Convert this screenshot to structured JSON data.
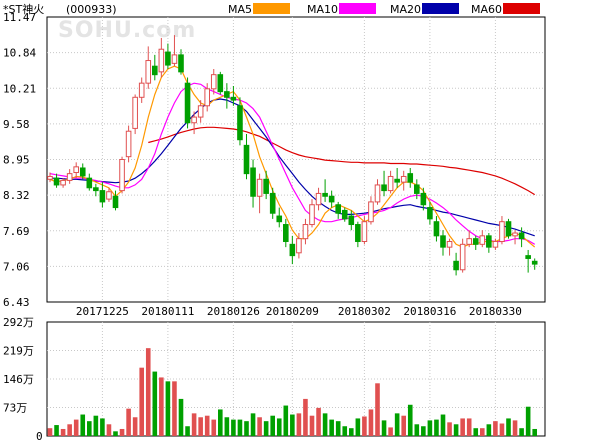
{
  "header": {
    "stock_name": "*ST神火",
    "stock_code": "(000933)"
  },
  "watermark": "SOHU.com",
  "legend": [
    {
      "label": "MA5",
      "color": "#ff9900"
    },
    {
      "label": "MA10",
      "color": "#ff00ff"
    },
    {
      "label": "MA20",
      "color": "#0000aa"
    },
    {
      "label": "MA60",
      "color": "#dd0000"
    }
  ],
  "colors": {
    "up": "#e05050",
    "down": "#00a000",
    "grid": "#c8c8c8",
    "axis": "#000000"
  },
  "chart_data": [
    {
      "type": "candlestick",
      "ylim": [
        6.43,
        11.47
      ],
      "y_ticks": [
        "11.47",
        "10.84",
        "10.21",
        "9.58",
        "8.95",
        "8.32",
        "7.69",
        "7.06",
        "6.43"
      ],
      "x_labels": [
        "20171225",
        "20180111",
        "20180126",
        "20180209",
        "20180302",
        "20180316",
        "20180330"
      ],
      "x_label_index": [
        8,
        18,
        28,
        37,
        48,
        58,
        68
      ],
      "ohlc": [
        [
          8.6,
          8.72,
          8.55,
          8.65
        ],
        [
          8.62,
          8.7,
          8.45,
          8.5
        ],
        [
          8.5,
          8.62,
          8.45,
          8.58
        ],
        [
          8.58,
          8.78,
          8.52,
          8.7
        ],
        [
          8.72,
          8.9,
          8.62,
          8.82
        ],
        [
          8.8,
          8.88,
          8.6,
          8.66
        ],
        [
          8.62,
          8.7,
          8.4,
          8.45
        ],
        [
          8.45,
          8.52,
          8.3,
          8.4
        ],
        [
          8.4,
          8.55,
          8.1,
          8.2
        ],
        [
          8.25,
          8.45,
          8.2,
          8.38
        ],
        [
          8.3,
          8.4,
          8.05,
          8.1
        ],
        [
          8.4,
          9.0,
          8.35,
          8.95
        ],
        [
          9.0,
          9.55,
          8.9,
          9.45
        ],
        [
          9.5,
          10.1,
          9.4,
          10.05
        ],
        [
          10.05,
          10.4,
          9.95,
          10.3
        ],
        [
          10.3,
          10.95,
          10.2,
          10.7
        ],
        [
          10.6,
          10.8,
          10.35,
          10.45
        ],
        [
          10.5,
          11.1,
          10.4,
          10.9
        ],
        [
          10.85,
          11.0,
          10.55,
          10.62
        ],
        [
          10.65,
          11.15,
          10.6,
          10.8
        ],
        [
          10.8,
          10.9,
          10.45,
          10.5
        ],
        [
          10.3,
          10.4,
          9.5,
          9.6
        ],
        [
          9.6,
          9.8,
          9.4,
          9.7
        ],
        [
          9.7,
          10.0,
          9.6,
          9.9
        ],
        [
          9.9,
          10.3,
          9.8,
          10.2
        ],
        [
          10.2,
          10.55,
          10.1,
          10.45
        ],
        [
          10.45,
          10.5,
          10.1,
          10.15
        ],
        [
          10.15,
          10.3,
          9.85,
          10.05
        ],
        [
          10.05,
          10.25,
          9.9,
          10.0
        ],
        [
          9.9,
          10.05,
          9.2,
          9.3
        ],
        [
          9.2,
          9.4,
          8.6,
          8.7
        ],
        [
          8.8,
          8.95,
          8.1,
          8.3
        ],
        [
          8.3,
          8.7,
          8.0,
          8.6
        ],
        [
          8.6,
          8.75,
          8.25,
          8.35
        ],
        [
          8.35,
          8.45,
          7.9,
          8.0
        ],
        [
          7.95,
          8.1,
          7.75,
          7.85
        ],
        [
          7.8,
          7.9,
          7.4,
          7.5
        ],
        [
          7.45,
          7.6,
          7.1,
          7.25
        ],
        [
          7.3,
          7.65,
          7.2,
          7.55
        ],
        [
          7.55,
          7.9,
          7.45,
          7.8
        ],
        [
          7.8,
          8.25,
          7.75,
          8.15
        ],
        [
          8.15,
          8.45,
          8.05,
          8.35
        ],
        [
          8.35,
          8.6,
          8.2,
          8.3
        ],
        [
          8.3,
          8.4,
          8.1,
          8.2
        ],
        [
          8.15,
          8.2,
          7.9,
          8.0
        ],
        [
          8.05,
          8.1,
          7.85,
          7.9
        ],
        [
          7.95,
          8.05,
          7.7,
          7.8
        ],
        [
          7.8,
          7.85,
          7.4,
          7.5
        ],
        [
          7.5,
          7.95,
          7.45,
          7.85
        ],
        [
          7.85,
          8.3,
          7.8,
          8.2
        ],
        [
          8.2,
          8.6,
          8.15,
          8.5
        ],
        [
          8.5,
          8.75,
          8.3,
          8.4
        ],
        [
          8.4,
          8.75,
          8.35,
          8.65
        ],
        [
          8.6,
          8.8,
          8.45,
          8.55
        ],
        [
          8.55,
          8.75,
          8.4,
          8.65
        ],
        [
          8.7,
          8.8,
          8.45,
          8.55
        ],
        [
          8.5,
          8.6,
          8.25,
          8.35
        ],
        [
          8.35,
          8.45,
          8.05,
          8.15
        ],
        [
          8.1,
          8.2,
          7.8,
          7.9
        ],
        [
          7.85,
          7.95,
          7.5,
          7.6
        ],
        [
          7.6,
          7.7,
          7.25,
          7.4
        ],
        [
          7.4,
          7.55,
          7.25,
          7.5
        ],
        [
          7.15,
          7.3,
          6.9,
          7.0
        ],
        [
          7.0,
          7.55,
          6.95,
          7.45
        ],
        [
          7.45,
          7.7,
          7.4,
          7.55
        ],
        [
          7.55,
          7.6,
          7.35,
          7.45
        ],
        [
          7.45,
          7.7,
          7.4,
          7.6
        ],
        [
          7.6,
          7.65,
          7.3,
          7.4
        ],
        [
          7.4,
          7.55,
          7.35,
          7.5
        ],
        [
          7.5,
          7.95,
          7.45,
          7.85
        ],
        [
          7.85,
          7.9,
          7.55,
          7.6
        ],
        [
          7.6,
          7.7,
          7.45,
          7.65
        ],
        [
          7.65,
          7.75,
          7.4,
          7.55
        ],
        [
          7.25,
          7.35,
          6.95,
          7.2
        ],
        [
          7.15,
          7.2,
          7.0,
          7.1
        ]
      ],
      "ma5": [
        8.6,
        8.55,
        8.58,
        8.6,
        8.65,
        8.64,
        8.6,
        8.55,
        8.5,
        8.45,
        8.3,
        8.4,
        8.55,
        8.8,
        9.2,
        9.7,
        10.1,
        10.4,
        10.55,
        10.6,
        10.55,
        10.3,
        10.1,
        9.95,
        9.9,
        10.0,
        10.05,
        10.1,
        10.15,
        10.0,
        9.7,
        9.4,
        9.0,
        8.7,
        8.4,
        8.15,
        7.95,
        7.7,
        7.55,
        7.55,
        7.65,
        7.8,
        8.0,
        8.1,
        8.15,
        8.1,
        8.05,
        7.95,
        7.85,
        7.9,
        8.0,
        8.15,
        8.3,
        8.45,
        8.55,
        8.55,
        8.5,
        8.4,
        8.2,
        8.0,
        7.8,
        7.6,
        7.45,
        7.4,
        7.45,
        7.45,
        7.5,
        7.5,
        7.5,
        7.55,
        7.6,
        7.65,
        7.6,
        7.5,
        7.4
      ],
      "ma10": [
        8.7,
        8.68,
        8.66,
        8.64,
        8.62,
        8.62,
        8.6,
        8.58,
        8.55,
        8.52,
        8.48,
        8.45,
        8.45,
        8.5,
        8.6,
        8.8,
        9.05,
        9.4,
        9.7,
        9.95,
        10.15,
        10.25,
        10.3,
        10.28,
        10.2,
        10.15,
        10.1,
        10.05,
        10.02,
        10.0,
        9.95,
        9.85,
        9.7,
        9.45,
        9.2,
        8.95,
        8.7,
        8.45,
        8.25,
        8.05,
        7.95,
        7.88,
        7.85,
        7.85,
        7.88,
        7.9,
        7.92,
        7.95,
        7.98,
        8.0,
        8.02,
        8.05,
        8.1,
        8.18,
        8.25,
        8.3,
        8.32,
        8.3,
        8.25,
        8.18,
        8.1,
        8.0,
        7.88,
        7.78,
        7.68,
        7.6,
        7.55,
        7.52,
        7.5,
        7.5,
        7.52,
        7.55,
        7.55,
        7.52,
        7.45
      ],
      "ma20": [
        8.62,
        8.62,
        8.61,
        8.6,
        8.6,
        8.59,
        8.58,
        8.57,
        8.56,
        8.55,
        8.54,
        8.55,
        8.57,
        8.62,
        8.7,
        8.8,
        8.92,
        9.05,
        9.2,
        9.35,
        9.5,
        9.62,
        9.75,
        9.85,
        9.95,
        10.0,
        10.02,
        10.0,
        9.95,
        9.9,
        9.8,
        9.65,
        9.5,
        9.35,
        9.18,
        9.0,
        8.85,
        8.7,
        8.55,
        8.42,
        8.3,
        8.2,
        8.12,
        8.05,
        8.0,
        7.98,
        7.98,
        7.99,
        8.0,
        8.02,
        8.05,
        8.08,
        8.1,
        8.12,
        8.14,
        8.15,
        8.12,
        8.1,
        8.08,
        8.05,
        8.02,
        8.0,
        7.97,
        7.94,
        7.91,
        7.88,
        7.85,
        7.82,
        7.8,
        7.78,
        7.75,
        7.72,
        7.68,
        7.64,
        7.6
      ],
      "ma60": [
        null,
        null,
        null,
        null,
        null,
        null,
        null,
        null,
        null,
        null,
        null,
        null,
        null,
        null,
        null,
        9.25,
        9.28,
        9.31,
        9.35,
        9.39,
        9.43,
        9.46,
        9.49,
        9.51,
        9.52,
        9.52,
        9.51,
        9.5,
        9.49,
        9.47,
        9.44,
        9.4,
        9.36,
        9.3,
        9.24,
        9.18,
        9.12,
        9.07,
        9.03,
        9.0,
        8.98,
        8.96,
        8.94,
        8.93,
        8.92,
        8.91,
        8.9,
        8.9,
        8.89,
        8.89,
        8.89,
        8.89,
        8.88,
        8.88,
        8.88,
        8.87,
        8.87,
        8.86,
        8.85,
        8.84,
        8.83,
        8.81,
        8.8,
        8.78,
        8.76,
        8.74,
        8.72,
        8.69,
        8.66,
        8.62,
        8.57,
        8.52,
        8.46,
        8.4,
        8.33
      ]
    },
    {
      "type": "bar",
      "name": "volume",
      "unit": "万",
      "ylim": [
        0,
        292
      ],
      "y_ticks": [
        "292万",
        "219万",
        "146万",
        "73万",
        "0"
      ],
      "values": [
        20,
        28,
        18,
        30,
        42,
        55,
        38,
        52,
        45,
        30,
        12,
        18,
        70,
        48,
        175,
        225,
        165,
        150,
        140,
        140,
        95,
        25,
        58,
        48,
        52,
        42,
        68,
        48,
        42,
        42,
        38,
        58,
        48,
        38,
        52,
        45,
        78,
        55,
        58,
        95,
        52,
        72,
        58,
        42,
        38,
        25,
        20,
        45,
        50,
        68,
        135,
        40,
        22,
        58,
        52,
        80,
        30,
        25,
        40,
        42,
        55,
        35,
        30,
        45,
        45,
        20,
        20,
        30,
        38,
        32,
        45,
        40,
        20,
        75,
        18
      ],
      "up": [
        true,
        false,
        true,
        true,
        true,
        false,
        false,
        false,
        false,
        true,
        false,
        true,
        true,
        true,
        true,
        true,
        false,
        true,
        false,
        true,
        false,
        false,
        true,
        true,
        true,
        true,
        false,
        false,
        false,
        false,
        false,
        false,
        true,
        false,
        false,
        false,
        false,
        false,
        true,
        true,
        true,
        true,
        false,
        false,
        false,
        false,
        false,
        false,
        true,
        true,
        true,
        false,
        true,
        false,
        true,
        false,
        false,
        false,
        false,
        false,
        false,
        true,
        false,
        true,
        true,
        false,
        true,
        false,
        true,
        true,
        false,
        true,
        false,
        false,
        false
      ]
    }
  ]
}
